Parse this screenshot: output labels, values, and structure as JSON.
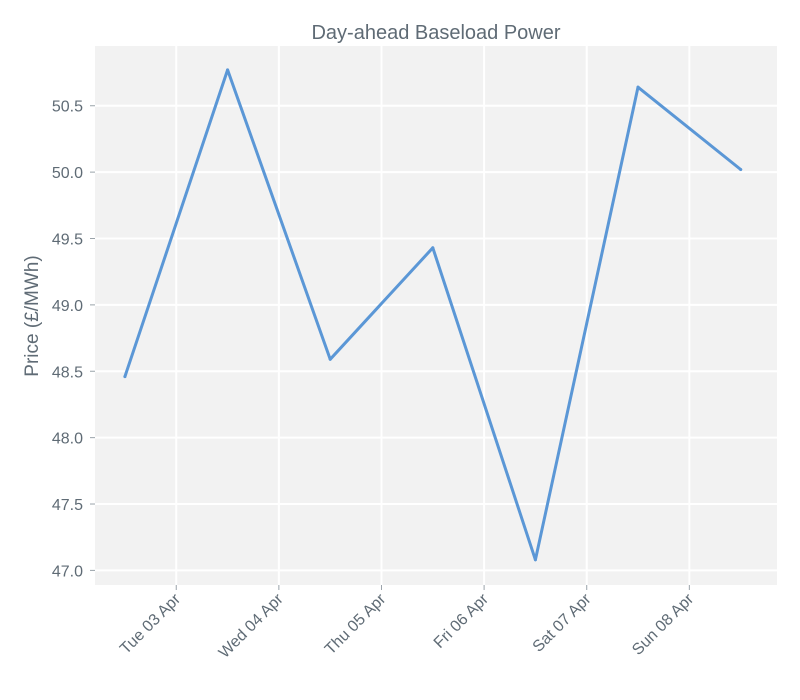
{
  "colors": {
    "background": "#ffffff",
    "plot_area": "#f2f2f2",
    "grid": "#ffffff",
    "line": "#5b97d6",
    "text": "#5f6b75"
  },
  "chart_data": {
    "type": "line",
    "title": "Day-ahead Baseload Power",
    "xlabel": "",
    "ylabel": "Price (£/MWh)",
    "x": [
      "2018-04-02T12:00",
      "2018-04-03T12:00",
      "2018-04-04T12:00",
      "2018-04-05T12:00",
      "2018-04-06T12:00",
      "2018-04-07T12:00",
      "2018-04-08T12:00"
    ],
    "series": [
      {
        "values": [
          48.46,
          50.77,
          48.59,
          49.43,
          47.08,
          50.64,
          50.02
        ]
      }
    ],
    "xticks": [
      {
        "x": "2018-04-03",
        "label": "Tue 03 Apr"
      },
      {
        "x": "2018-04-04",
        "label": "Wed 04 Apr"
      },
      {
        "x": "2018-04-05",
        "label": "Thu 05 Apr"
      },
      {
        "x": "2018-04-06",
        "label": "Fri 06 Apr"
      },
      {
        "x": "2018-04-07",
        "label": "Sat 07 Apr"
      },
      {
        "x": "2018-04-08",
        "label": "Sun 08 Apr"
      }
    ],
    "yticks": [
      {
        "y": 47.0,
        "label": "47.0"
      },
      {
        "y": 47.5,
        "label": "47.5"
      },
      {
        "y": 48.0,
        "label": "48.0"
      },
      {
        "y": 48.5,
        "label": "48.5"
      },
      {
        "y": 49.0,
        "label": "49.0"
      },
      {
        "y": 49.5,
        "label": "49.5"
      },
      {
        "y": 50.0,
        "label": "50.0"
      },
      {
        "y": 50.5,
        "label": "50.5"
      }
    ],
    "xlim": [
      "2018-04-02T05:00",
      "2018-04-08T20:30"
    ],
    "ylim": [
      46.89,
      50.95
    ],
    "grid": true,
    "legend": "none"
  }
}
